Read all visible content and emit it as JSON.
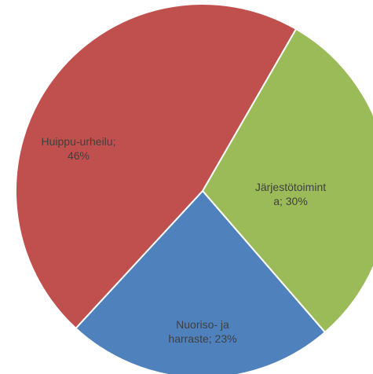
{
  "chart_data": {
    "type": "pie",
    "values": [
      30,
      23,
      46
    ],
    "value_labels": [
      [
        "Järjestötoimint",
        "a; 30%"
      ],
      [
        "Nuoriso- ja",
        "harraste; 23%"
      ],
      [
        "Huippu-urheilu;",
        "46%"
      ]
    ],
    "colors": [
      "#9bbb59",
      "#4f81bd",
      "#c0504d"
    ]
  }
}
